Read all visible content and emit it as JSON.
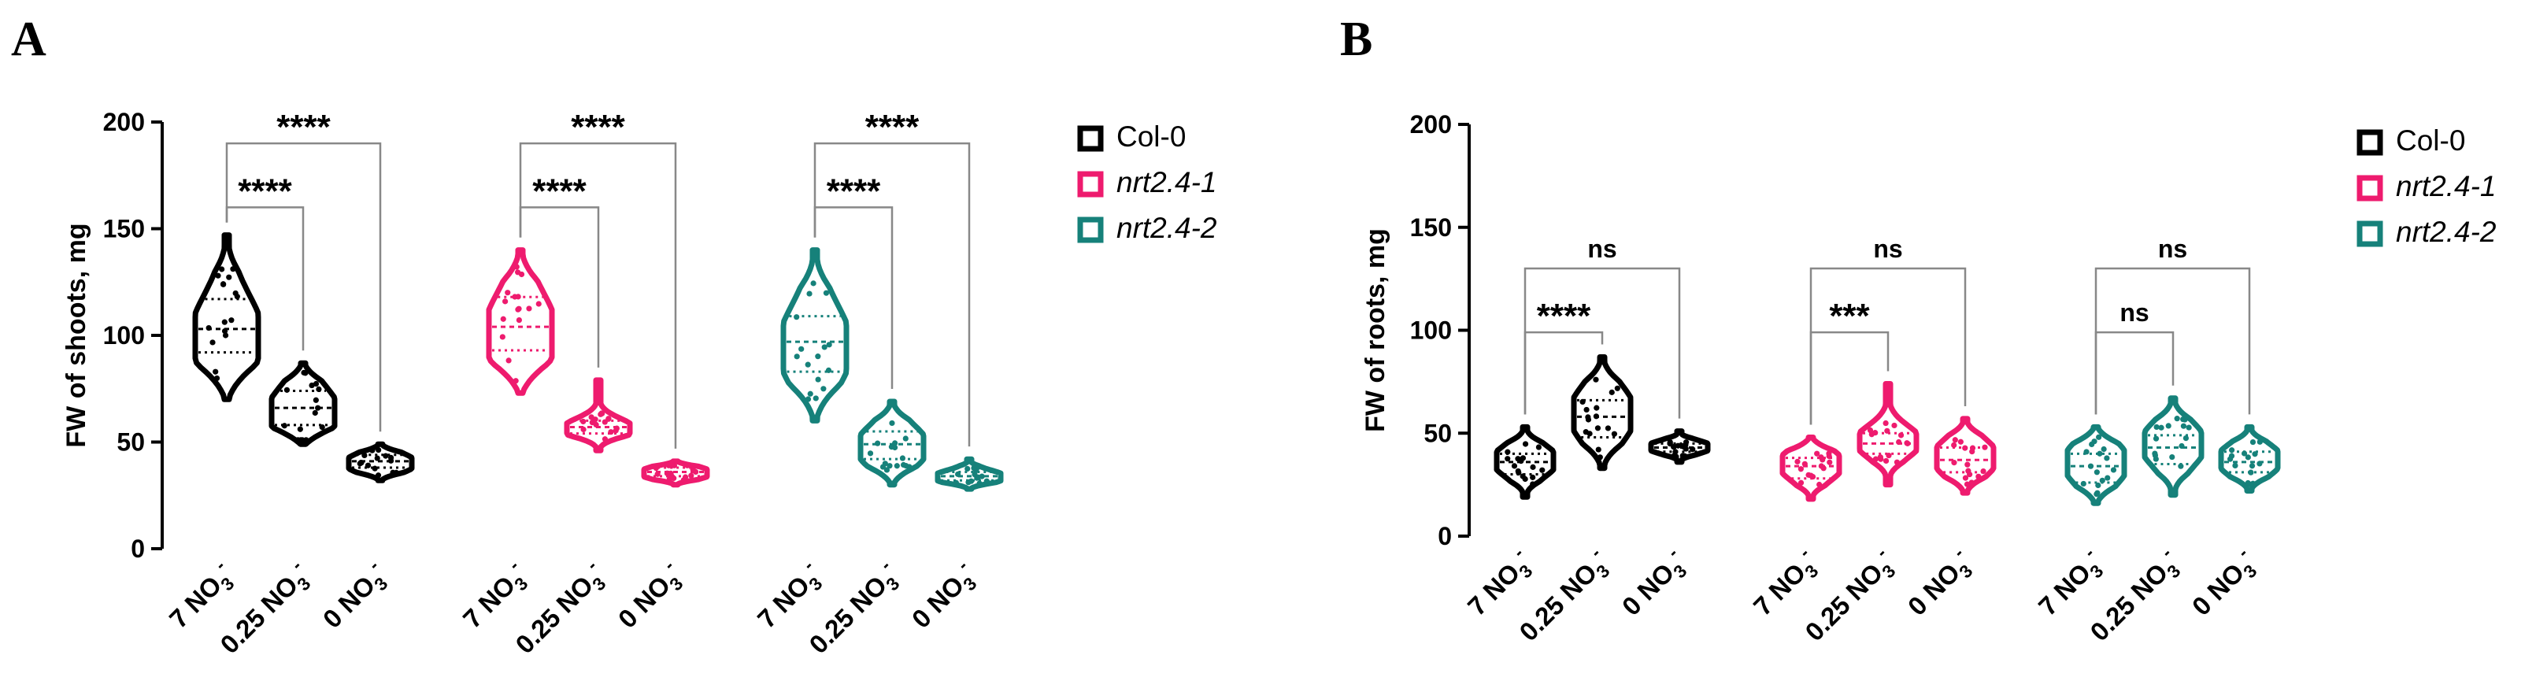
{
  "colors": {
    "col0": "#000000",
    "nrt1": "#ee1b6e",
    "nrt2": "#16817a",
    "axis": "#000000",
    "bracket": "#888888"
  },
  "legend": [
    {
      "key": "col0",
      "label": "Col-0",
      "italic": false
    },
    {
      "key": "nrt1",
      "label": "nrt2.4-1",
      "italic": true
    },
    {
      "key": "nrt2",
      "label": "nrt2.4-2",
      "italic": true
    }
  ],
  "chart_data": [
    {
      "type": "violin",
      "panel": "A",
      "ylabel": "FW of shoots, mg",
      "ylim": [
        0,
        200
      ],
      "yticks": [
        0,
        50,
        100,
        150,
        200
      ],
      "category_labels": [
        {
          "main": "7 NO",
          "sub": "3",
          "sup": "-"
        },
        {
          "main": "0.25 NO",
          "sub": "3",
          "sup": "-"
        },
        {
          "main": "0 NO",
          "sub": "3",
          "sup": "-"
        }
      ],
      "groups": [
        {
          "genotype": "col0",
          "violins": [
            {
              "min": 70,
              "max": 147,
              "median": 103,
              "q1": 92,
              "q3": 117
            },
            {
              "min": 49,
              "max": 87,
              "median": 66,
              "q1": 58,
              "q3": 74
            },
            {
              "min": 32,
              "max": 49,
              "median": 41,
              "q1": 38,
              "q3": 44
            }
          ],
          "brackets": [
            {
              "from": 0,
              "to": 1,
              "y": 160,
              "label": "****"
            },
            {
              "from": 0,
              "to": 2,
              "y": 190,
              "label": "****"
            }
          ]
        },
        {
          "genotype": "nrt1",
          "violins": [
            {
              "min": 73,
              "max": 140,
              "median": 104,
              "q1": 93,
              "q3": 118
            },
            {
              "min": 46,
              "max": 79,
              "median": 57,
              "q1": 54,
              "q3": 60
            },
            {
              "min": 30,
              "max": 41,
              "median": 36,
              "q1": 34,
              "q3": 38
            }
          ],
          "brackets": [
            {
              "from": 0,
              "to": 1,
              "y": 160,
              "label": "****"
            },
            {
              "from": 0,
              "to": 2,
              "y": 190,
              "label": "****"
            }
          ]
        },
        {
          "genotype": "nrt2",
          "violins": [
            {
              "min": 60,
              "max": 140,
              "median": 97,
              "q1": 83,
              "q3": 109
            },
            {
              "min": 30,
              "max": 69,
              "median": 49,
              "q1": 42,
              "q3": 55
            },
            {
              "min": 28,
              "max": 42,
              "median": 34,
              "q1": 32,
              "q3": 36
            }
          ],
          "brackets": [
            {
              "from": 0,
              "to": 1,
              "y": 160,
              "label": "****"
            },
            {
              "from": 0,
              "to": 2,
              "y": 190,
              "label": "****"
            }
          ]
        }
      ]
    },
    {
      "type": "violin",
      "panel": "B",
      "ylabel": "FW of roots, mg",
      "ylim": [
        0,
        200
      ],
      "yticks": [
        0,
        50,
        100,
        150,
        200
      ],
      "category_labels": [
        {
          "main": "7 NO",
          "sub": "3",
          "sup": "-"
        },
        {
          "main": "0.25 NO",
          "sub": "3",
          "sup": "-"
        },
        {
          "main": "0 NO",
          "sub": "3",
          "sup": "-"
        }
      ],
      "groups": [
        {
          "genotype": "col0",
          "violins": [
            {
              "min": 19,
              "max": 53,
              "median": 36,
              "q1": 30,
              "q3": 40
            },
            {
              "min": 33,
              "max": 87,
              "median": 58,
              "q1": 48,
              "q3": 66
            },
            {
              "min": 36,
              "max": 51,
              "median": 43,
              "q1": 41,
              "q3": 45
            }
          ],
          "brackets": [
            {
              "from": 0,
              "to": 1,
              "y": 99,
              "label": "****"
            },
            {
              "from": 0,
              "to": 2,
              "y": 130,
              "label": "ns"
            }
          ]
        },
        {
          "genotype": "nrt1",
          "violins": [
            {
              "min": 18,
              "max": 48,
              "median": 34,
              "q1": 28,
              "q3": 38
            },
            {
              "min": 25,
              "max": 74,
              "median": 45,
              "q1": 40,
              "q3": 50
            },
            {
              "min": 21,
              "max": 57,
              "median": 37,
              "q1": 31,
              "q3": 43
            }
          ],
          "brackets": [
            {
              "from": 0,
              "to": 1,
              "y": 99,
              "label": "***"
            },
            {
              "from": 0,
              "to": 2,
              "y": 130,
              "label": "ns"
            }
          ]
        },
        {
          "genotype": "nrt2",
          "violins": [
            {
              "min": 16,
              "max": 53,
              "median": 34,
              "q1": 26,
              "q3": 40
            },
            {
              "min": 20,
              "max": 67,
              "median": 43,
              "q1": 35,
              "q3": 49
            },
            {
              "min": 22,
              "max": 53,
              "median": 36,
              "q1": 31,
              "q3": 41
            }
          ],
          "brackets": [
            {
              "from": 0,
              "to": 1,
              "y": 99,
              "label": "ns"
            },
            {
              "from": 0,
              "to": 2,
              "y": 130,
              "label": "ns"
            }
          ]
        }
      ]
    }
  ]
}
